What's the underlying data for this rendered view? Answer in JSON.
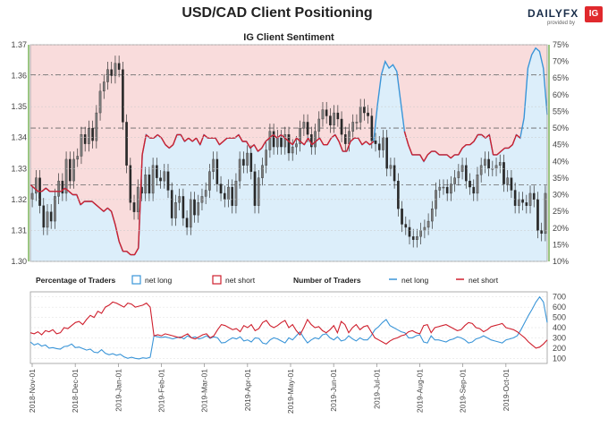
{
  "title": "USD/CAD Client Positioning",
  "logo": {
    "brand": "DAILYFX",
    "sub": "provided by",
    "badge": "IG"
  },
  "chart_data": [
    {
      "type": "candlestick-with-sentiment",
      "title": "IG Client Sentiment",
      "ylim": [
        1.3,
        1.37
      ],
      "yticks": [
        "1.30",
        "1.31",
        "1.32",
        "1.33",
        "1.34",
        "1.35",
        "1.36",
        "1.37"
      ],
      "y2lim": [
        10,
        75
      ],
      "y2ticks": [
        "10%",
        "15%",
        "20%",
        "25%",
        "30%",
        "35%",
        "40%",
        "45%",
        "50%",
        "55%",
        "60%",
        "65%",
        "70%",
        "75%"
      ],
      "reference_lines_pct": [
        50,
        33,
        66
      ],
      "series": [
        {
          "name": "net long",
          "color": "#3a95d8",
          "values": [
            33,
            32,
            31,
            31,
            32,
            31,
            31,
            31,
            31,
            32,
            31,
            30,
            30,
            27,
            28,
            28,
            28,
            27,
            26,
            25,
            26,
            25,
            21,
            16,
            13,
            13,
            12,
            12,
            14,
            42,
            48,
            47,
            47,
            48,
            47,
            45,
            44,
            45,
            48,
            48,
            46,
            47,
            46,
            47,
            45,
            48,
            47,
            47,
            47,
            45,
            46,
            47,
            47,
            47,
            48,
            46,
            46,
            44,
            45,
            43,
            44,
            46,
            47,
            48,
            47,
            48,
            47,
            46,
            45,
            47,
            46,
            45,
            47,
            45,
            46,
            47,
            45,
            45,
            47,
            48,
            46,
            43,
            43,
            46,
            47,
            47,
            45,
            46,
            45,
            46,
            57,
            66,
            70,
            68,
            69,
            67,
            58,
            49,
            45,
            42,
            42,
            42,
            40,
            42,
            43,
            43,
            42,
            42,
            42,
            41,
            42,
            42,
            44,
            45,
            45,
            46,
            48,
            48,
            47,
            48,
            42,
            42,
            43,
            44,
            44,
            45,
            48,
            47,
            53,
            68,
            72,
            74,
            73,
            68,
            54
          ]
        }
      ],
      "sentiment_order": "net long is the lower (blue) fill; net short is the remaining upper (red) fill",
      "price": [
        1.322,
        1.327,
        1.318,
        1.311,
        1.316,
        1.313,
        1.321,
        1.326,
        1.322,
        1.333,
        1.326,
        1.333,
        1.334,
        1.341,
        1.338,
        1.343,
        1.339,
        1.348,
        1.355,
        1.358,
        1.362,
        1.36,
        1.364,
        1.362,
        1.345,
        1.331,
        1.319,
        1.316,
        1.324,
        1.322,
        1.328,
        1.322,
        1.331,
        1.327,
        1.326,
        1.329,
        1.323,
        1.314,
        1.319,
        1.321,
        1.314,
        1.311,
        1.32,
        1.315,
        1.319,
        1.321,
        1.323,
        1.329,
        1.333,
        1.325,
        1.322,
        1.32,
        1.324,
        1.318,
        1.326,
        1.333,
        1.331,
        1.335,
        1.329,
        1.318,
        1.327,
        1.331,
        1.336,
        1.342,
        1.337,
        1.34,
        1.337,
        1.341,
        1.335,
        1.337,
        1.338,
        1.343,
        1.345,
        1.341,
        1.337,
        1.342,
        1.346,
        1.349,
        1.347,
        1.344,
        1.348,
        1.346,
        1.341,
        1.338,
        1.342,
        1.345,
        1.345,
        1.35,
        1.348,
        1.347,
        1.339,
        1.338,
        1.336,
        1.34,
        1.33,
        1.331,
        1.326,
        1.317,
        1.312,
        1.311,
        1.308,
        1.307,
        1.308,
        1.31,
        1.311,
        1.313,
        1.317,
        1.323,
        1.324,
        1.324,
        1.322,
        1.325,
        1.327,
        1.329,
        1.331,
        1.326,
        1.324,
        1.322,
        1.328,
        1.331,
        1.333,
        1.33,
        1.33,
        1.331,
        1.332,
        1.325,
        1.327,
        1.323,
        1.318,
        1.32,
        1.319,
        1.318,
        1.322,
        1.32,
        1.31,
        1.309,
        1.322
      ]
    },
    {
      "type": "line",
      "legend": {
        "pct_title": "Percentage of Traders",
        "pct_long": "net long",
        "pct_short": "net short",
        "num_title": "Number of Traders",
        "num_long": "net long",
        "num_short": "net short"
      },
      "ylim": [
        50,
        750
      ],
      "yticks": [
        "100",
        "200",
        "300",
        "400",
        "500",
        "600",
        "700"
      ],
      "series": [
        {
          "name": "net long",
          "color": "#3a95d8",
          "values": [
            260,
            230,
            245,
            220,
            230,
            200,
            205,
            195,
            190,
            215,
            220,
            240,
            205,
            210,
            195,
            180,
            190,
            160,
            155,
            185,
            150,
            135,
            145,
            130,
            140,
            115,
            100,
            110,
            100,
            95,
            105,
            100,
            110,
            320,
            310,
            305,
            310,
            300,
            290,
            300,
            310,
            290,
            320,
            300,
            310,
            290,
            300,
            320,
            295,
            310,
            300,
            250,
            255,
            280,
            300,
            290,
            310,
            270,
            280,
            260,
            300,
            295,
            250,
            240,
            280,
            300,
            290,
            270,
            250,
            300,
            280,
            320,
            360,
            300,
            250,
            280,
            300,
            290,
            330,
            340,
            300,
            280,
            310,
            270,
            280,
            320,
            290,
            270,
            300,
            280,
            280,
            320,
            380,
            410,
            450,
            480,
            420,
            400,
            380,
            360,
            350,
            300,
            300,
            320,
            330,
            260,
            250,
            320,
            280,
            280,
            270,
            260,
            280,
            290,
            310,
            300,
            280,
            250,
            260,
            290,
            300,
            320,
            300,
            280,
            270,
            260,
            250,
            280,
            290,
            300,
            320,
            380,
            450,
            520,
            580,
            650,
            700,
            650,
            450
          ]
        },
        {
          "name": "net short",
          "color": "#cf1f2d",
          "values": [
            350,
            340,
            360,
            330,
            370,
            360,
            380,
            340,
            350,
            400,
            390,
            420,
            450,
            460,
            430,
            480,
            520,
            500,
            560,
            540,
            600,
            620,
            650,
            640,
            620,
            600,
            640,
            630,
            600,
            610,
            620,
            640,
            600,
            320,
            330,
            320,
            340,
            330,
            320,
            310,
            300,
            320,
            340,
            300,
            290,
            310,
            330,
            340,
            300,
            320,
            380,
            430,
            420,
            400,
            380,
            390,
            360,
            420,
            400,
            430,
            370,
            390,
            450,
            470,
            420,
            400,
            420,
            450,
            470,
            400,
            430,
            370,
            330,
            400,
            480,
            430,
            400,
            410,
            370,
            350,
            380,
            420,
            350,
            460,
            430,
            350,
            400,
            430,
            380,
            410,
            420,
            360,
            300,
            280,
            260,
            240,
            270,
            290,
            300,
            320,
            330,
            360,
            370,
            350,
            340,
            420,
            430,
            350,
            400,
            410,
            420,
            430,
            410,
            390,
            370,
            380,
            420,
            450,
            440,
            400,
            390,
            360,
            380,
            410,
            420,
            430,
            440,
            400,
            390,
            380,
            360,
            330,
            300,
            260,
            230,
            200,
            210,
            240,
            280
          ]
        }
      ]
    }
  ],
  "xaxis": {
    "labels": [
      "2018-Nov-01",
      "2018-Dec-01",
      "2019-Jan-01",
      "2019-Feb-01",
      "2019-Mar-01",
      "2019-Apr-01",
      "2019-May-01",
      "2019-Jun-01",
      "2019-Jul-01",
      "2019-Aug-01",
      "2019-Sep-01",
      "2019-Oct-01"
    ]
  },
  "colors": {
    "long": "#3a95d8",
    "short": "#cf1f2d",
    "long_fill": "#dceefa",
    "short_fill": "#f9dcdc",
    "candle_up": "#7a7a7a",
    "candle_down": "#2a2a2a"
  }
}
